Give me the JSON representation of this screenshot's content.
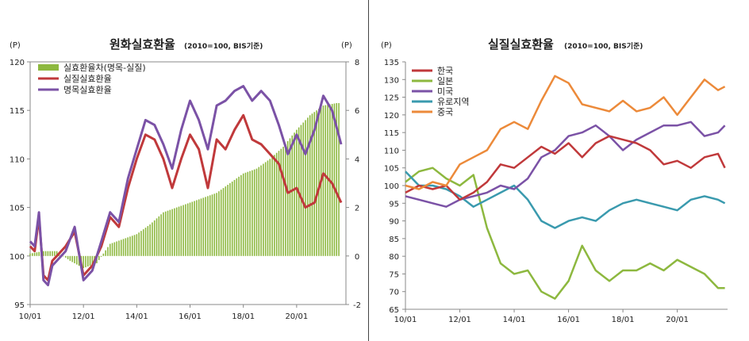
{
  "left": {
    "title": "원화실효환율",
    "subtitle": "(2010=100, BIS기준)",
    "unit_left": "(P)",
    "unit_right": "(P)"
  },
  "right": {
    "title": "실질실효환율",
    "subtitle": "(2010=100, BIS기준)",
    "unit_left": "(P)"
  },
  "colors": {
    "purple": "#7b52a6",
    "red": "#c0393b",
    "green": "#8db83f",
    "teal": "#3a9aae",
    "orange": "#ec8a3a"
  },
  "chart_data": [
    {
      "type": "line",
      "title": "원화실효환율",
      "subtitle": "(2010=100, BIS기준)",
      "x_ticks": [
        "10/01",
        "12/01",
        "14/01",
        "16/01",
        "18/01",
        "20/01"
      ],
      "ylim_left": [
        95,
        120
      ],
      "yticks_left": [
        95,
        100,
        105,
        110,
        115,
        120
      ],
      "ylim_right": [
        -2,
        8
      ],
      "yticks_right": [
        -2,
        0,
        2,
        4,
        6,
        8
      ],
      "grid": false,
      "legend_position": "top-left",
      "series": [
        {
          "name": "실효환율차(명목-실질)",
          "type": "bar",
          "axis": "right",
          "color": "#8db83f",
          "x": [
            2010,
            2010.5,
            2011,
            2011.5,
            2012,
            2012.5,
            2013,
            2013.5,
            2014,
            2014.5,
            2015,
            2015.5,
            2016,
            2016.5,
            2017,
            2017.5,
            2018,
            2018.5,
            2019,
            2019.5,
            2020,
            2020.5,
            2021,
            2021.5
          ],
          "values": [
            0.1,
            0.2,
            0.2,
            -0.2,
            -0.5,
            -0.3,
            0.5,
            0.7,
            0.9,
            1.3,
            1.8,
            2.0,
            2.2,
            2.4,
            2.6,
            3.0,
            3.4,
            3.6,
            4.0,
            4.5,
            5.2,
            5.8,
            6.2,
            6.3
          ]
        },
        {
          "name": "실질실효환율",
          "type": "line",
          "axis": "left",
          "color": "#c0393b",
          "x": [
            2010,
            2010.17,
            2010.33,
            2010.5,
            2010.67,
            2010.83,
            2011,
            2011.33,
            2011.67,
            2012,
            2012.33,
            2012.67,
            2013,
            2013.33,
            2013.67,
            2014,
            2014.33,
            2014.67,
            2015,
            2015.33,
            2015.67,
            2016,
            2016.33,
            2016.67,
            2017,
            2017.33,
            2017.67,
            2018,
            2018.33,
            2018.67,
            2019,
            2019.33,
            2019.67,
            2020,
            2020.33,
            2020.67,
            2021,
            2021.33,
            2021.67
          ],
          "values": [
            101.0,
            100.5,
            104.0,
            98.0,
            97.5,
            99.5,
            100.0,
            101.0,
            102.5,
            98.0,
            99.0,
            101.0,
            104.0,
            103.0,
            107.0,
            110.0,
            112.5,
            112.0,
            110.0,
            107.0,
            110.0,
            112.5,
            111.0,
            107.0,
            112.0,
            111.0,
            113.0,
            114.5,
            112.0,
            111.5,
            110.5,
            109.5,
            106.5,
            107.0,
            105.0,
            105.5,
            108.5,
            107.5,
            105.5
          ]
        },
        {
          "name": "명목실효환율",
          "type": "line",
          "axis": "left",
          "color": "#7b52a6",
          "x": [
            2010,
            2010.17,
            2010.33,
            2010.5,
            2010.67,
            2010.83,
            2011,
            2011.33,
            2011.67,
            2012,
            2012.33,
            2012.67,
            2013,
            2013.33,
            2013.67,
            2014,
            2014.33,
            2014.67,
            2015,
            2015.33,
            2015.67,
            2016,
            2016.33,
            2016.67,
            2017,
            2017.33,
            2017.67,
            2018,
            2018.33,
            2018.67,
            2019,
            2019.33,
            2019.67,
            2020,
            2020.33,
            2020.67,
            2021,
            2021.33,
            2021.67
          ],
          "values": [
            101.5,
            101.0,
            104.5,
            97.5,
            97.0,
            99.0,
            99.5,
            100.5,
            103.0,
            97.5,
            98.5,
            101.5,
            104.5,
            103.5,
            108.0,
            111.0,
            114.0,
            113.5,
            111.5,
            109.0,
            113.0,
            116.0,
            114.0,
            111.0,
            115.5,
            116.0,
            117.0,
            117.5,
            116.0,
            117.0,
            116.0,
            113.5,
            110.5,
            112.5,
            110.5,
            113.0,
            116.5,
            115.0,
            111.5
          ]
        }
      ]
    },
    {
      "type": "line",
      "title": "실질실효환율",
      "subtitle": "(2010=100, BIS기준)",
      "x_ticks": [
        "10/01",
        "12/01",
        "14/01",
        "16/01",
        "18/01",
        "20/01"
      ],
      "ylim": [
        65,
        135
      ],
      "yticks": [
        65,
        70,
        75,
        80,
        85,
        90,
        95,
        100,
        105,
        110,
        115,
        120,
        125,
        130,
        135
      ],
      "grid": false,
      "legend_position": "top-left",
      "series": [
        {
          "name": "한국",
          "color": "#c0393b",
          "x": [
            2010,
            2010.5,
            2011,
            2011.5,
            2012,
            2012.5,
            2013,
            2013.5,
            2014,
            2014.5,
            2015,
            2015.5,
            2016,
            2016.5,
            2017,
            2017.5,
            2018,
            2018.5,
            2019,
            2019.5,
            2020,
            2020.5,
            2021,
            2021.5,
            2021.75
          ],
          "values": [
            98,
            100,
            99,
            100,
            96,
            98,
            101,
            106,
            105,
            108,
            111,
            109,
            112,
            108,
            112,
            114,
            113,
            112,
            110,
            106,
            107,
            105,
            108,
            109,
            105
          ]
        },
        {
          "name": "일본",
          "color": "#8db83f",
          "x": [
            2010,
            2010.5,
            2011,
            2011.5,
            2012,
            2012.5,
            2013,
            2013.5,
            2014,
            2014.5,
            2015,
            2015.5,
            2016,
            2016.5,
            2017,
            2017.5,
            2018,
            2018.5,
            2019,
            2019.5,
            2020,
            2020.5,
            2021,
            2021.5,
            2021.75
          ],
          "values": [
            101,
            104,
            105,
            102,
            100,
            103,
            88,
            78,
            75,
            76,
            70,
            68,
            73,
            83,
            76,
            73,
            76,
            76,
            78,
            76,
            79,
            77,
            75,
            71,
            71
          ]
        },
        {
          "name": "미국",
          "color": "#7b52a6",
          "x": [
            2010,
            2010.5,
            2011,
            2011.5,
            2012,
            2012.5,
            2013,
            2013.5,
            2014,
            2014.5,
            2015,
            2015.5,
            2016,
            2016.5,
            2017,
            2017.5,
            2018,
            2018.5,
            2019,
            2019.5,
            2020,
            2020.5,
            2021,
            2021.5,
            2021.75
          ],
          "values": [
            97,
            96,
            95,
            94,
            96,
            97,
            98,
            100,
            99,
            102,
            108,
            110,
            114,
            115,
            117,
            114,
            110,
            113,
            115,
            117,
            117,
            118,
            114,
            115,
            117
          ]
        },
        {
          "name": "유로지역",
          "color": "#3a9aae",
          "x": [
            2010,
            2010.5,
            2011,
            2011.5,
            2012,
            2012.5,
            2013,
            2013.5,
            2014,
            2014.5,
            2015,
            2015.5,
            2016,
            2016.5,
            2017,
            2017.5,
            2018,
            2018.5,
            2019,
            2019.5,
            2020,
            2020.5,
            2021,
            2021.5,
            2021.75
          ],
          "values": [
            104,
            100,
            100,
            99,
            97,
            94,
            96,
            98,
            100,
            96,
            90,
            88,
            90,
            91,
            90,
            93,
            95,
            96,
            95,
            94,
            93,
            96,
            97,
            96,
            95
          ]
        },
        {
          "name": "중국",
          "color": "#ec8a3a",
          "x": [
            2010,
            2010.5,
            2011,
            2011.5,
            2012,
            2012.5,
            2013,
            2013.5,
            2014,
            2014.5,
            2015,
            2015.5,
            2016,
            2016.5,
            2017,
            2017.5,
            2018,
            2018.5,
            2019,
            2019.5,
            2020,
            2020.5,
            2021,
            2021.5,
            2021.75
          ],
          "values": [
            100,
            99,
            101,
            100,
            106,
            108,
            110,
            116,
            118,
            116,
            124,
            131,
            129,
            123,
            122,
            121,
            124,
            121,
            122,
            125,
            120,
            125,
            130,
            127,
            128
          ]
        }
      ]
    }
  ]
}
